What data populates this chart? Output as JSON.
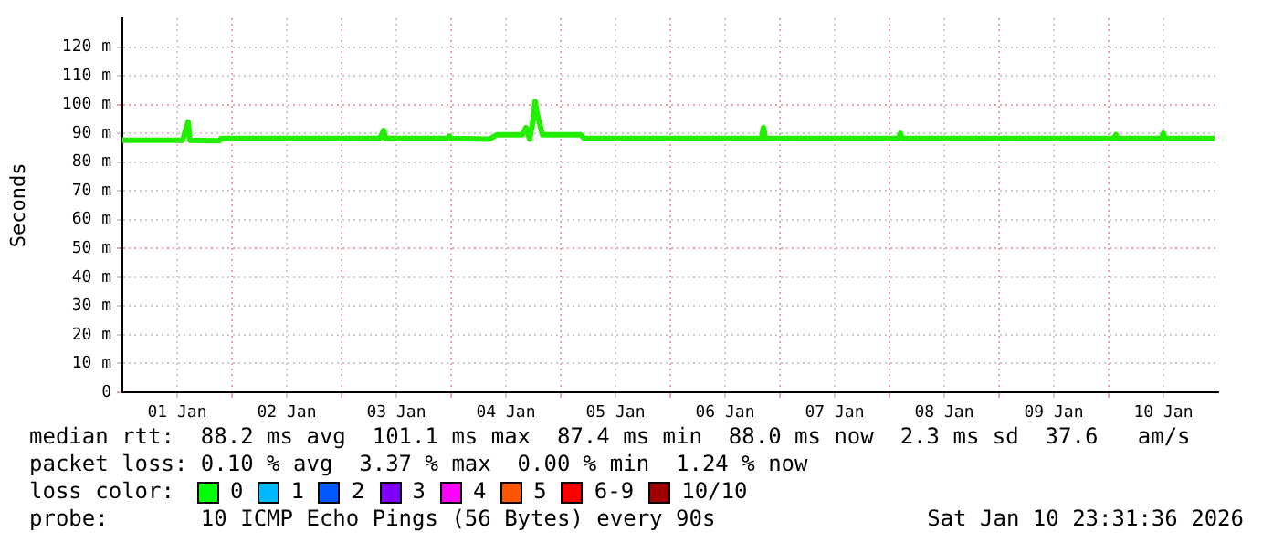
{
  "chart_data": {
    "type": "line",
    "ylabel": "Seconds",
    "x": [
      "2026-01-01T00:00",
      "2026-01-01T13:12",
      "2026-01-01T14:24",
      "2026-01-01T14:48",
      "2026-01-01T21:12",
      "2026-01-01T21:36",
      "2026-01-03T08:24",
      "2026-01-03T09:12",
      "2026-01-03T09:36",
      "2026-01-03T23:12",
      "2026-01-03T23:36",
      "2026-01-04T00:00",
      "2026-01-04T08:24",
      "2026-01-04T10:00",
      "2026-01-04T15:36",
      "2026-01-04T16:24",
      "2026-01-04T17:12",
      "2026-01-04T18:00",
      "2026-01-04T18:24",
      "2026-01-04T18:48",
      "2026-01-04T19:36",
      "2026-01-04T20:00",
      "2026-01-05T04:24",
      "2026-01-05T05:12",
      "2026-01-06T20:00",
      "2026-01-06T20:24",
      "2026-01-06T20:48",
      "2026-01-08T02:00",
      "2026-01-08T02:24",
      "2026-01-08T02:48",
      "2026-01-10T01:12",
      "2026-01-10T01:36",
      "2026-01-10T02:00",
      "2026-01-10T11:36",
      "2026-01-10T12:00",
      "2026-01-10T12:24",
      "2026-01-10T23:12"
    ],
    "series": [
      {
        "color": "#22ee00",
        "values": [
          87.6,
          87.6,
          94,
          87.6,
          87.4,
          88.2,
          88.2,
          91,
          88.2,
          88.2,
          89,
          88.2,
          88,
          89.5,
          89.5,
          92,
          88,
          95,
          101.1,
          97,
          92,
          89.5,
          89.5,
          88.2,
          88.2,
          92,
          88.2,
          88.2,
          90,
          88.2,
          88.2,
          89.5,
          88.2,
          88.2,
          90,
          88.2,
          88.2
        ]
      }
    ],
    "xlim": [
      "2026-01-01T00:00",
      "2026-01-11T00:00"
    ],
    "xticks": [
      {
        "value": "2026-01-01T12:00",
        "label": "01 Jan"
      },
      {
        "value": "2026-01-02T00:00",
        "label": null
      },
      {
        "value": "2026-01-02T12:00",
        "label": "02 Jan"
      },
      {
        "value": "2026-01-03T00:00",
        "label": null
      },
      {
        "value": "2026-01-03T12:00",
        "label": "03 Jan"
      },
      {
        "value": "2026-01-04T00:00",
        "label": null
      },
      {
        "value": "2026-01-04T12:00",
        "label": "04 Jan"
      },
      {
        "value": "2026-01-05T00:00",
        "label": null
      },
      {
        "value": "2026-01-05T12:00",
        "label": "05 Jan"
      },
      {
        "value": "2026-01-06T00:00",
        "label": null
      },
      {
        "value": "2026-01-06T12:00",
        "label": "06 Jan"
      },
      {
        "value": "2026-01-07T00:00",
        "label": null
      },
      {
        "value": "2026-01-07T12:00",
        "label": "07 Jan"
      },
      {
        "value": "2026-01-08T00:00",
        "label": null
      },
      {
        "value": "2026-01-08T12:00",
        "label": "08 Jan"
      },
      {
        "value": "2026-01-09T00:00",
        "label": null
      },
      {
        "value": "2026-01-09T12:00",
        "label": "09 Jan"
      },
      {
        "value": "2026-01-10T00:00",
        "label": null
      },
      {
        "value": "2026-01-10T12:00",
        "label": "10 Jan"
      }
    ],
    "ylim": [
      0,
      130
    ],
    "yticks": [
      0,
      {
        "value": 10,
        "label": "10 m"
      },
      {
        "value": 20,
        "label": "20 m"
      },
      {
        "value": 30,
        "label": "30 m"
      },
      {
        "value": 40,
        "label": "40 m"
      },
      {
        "value": 50,
        "label": "50 m"
      },
      {
        "value": 60,
        "label": "60 m"
      },
      {
        "value": 70,
        "label": "70 m"
      },
      {
        "value": 80,
        "label": "80 m"
      },
      {
        "value": 90,
        "label": "90 m"
      },
      {
        "value": 100,
        "label": "100 m"
      },
      {
        "value": 110,
        "label": "110 m"
      },
      {
        "value": 120,
        "label": "120 m"
      }
    ],
    "grid": true,
    "legend": false,
    "marker": "none",
    "line_style": "solid",
    "annotations": [
      "median rtt:  88.2 ms avg  101.1 ms max  87.4 ms min  88.0 ms now  2.3 ms sd  37.6   am/s",
      "packet loss: 0.10 % avg  3.37 % max  0.00 % min  1.24 % now",
      "loss color:",
      "0",
      "1",
      "2",
      "3",
      "4",
      "5",
      "6-9",
      "10/10",
      "probe:       10 ICMP Echo Pings (56 Bytes) every 90s",
      "Sat Jan 10 23:31:36 2026"
    ]
  }
}
